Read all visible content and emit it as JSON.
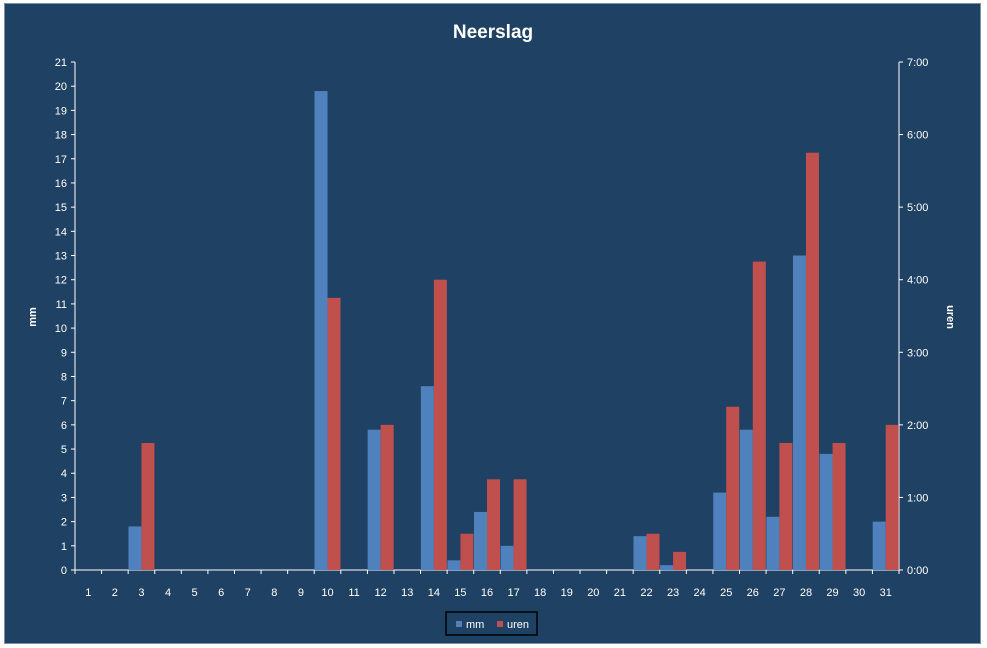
{
  "chart_data": {
    "type": "bar",
    "title": "Neerslag",
    "ylabel": "mm",
    "y2label": "uren",
    "categories": [
      "1",
      "2",
      "3",
      "4",
      "5",
      "6",
      "7",
      "8",
      "9",
      "10",
      "11",
      "12",
      "13",
      "14",
      "15",
      "16",
      "17",
      "18",
      "19",
      "20",
      "21",
      "22",
      "23",
      "24",
      "25",
      "26",
      "27",
      "28",
      "29",
      "30",
      "31"
    ],
    "ylim": [
      0,
      21
    ],
    "y_ticks": [
      "0",
      "1",
      "2",
      "3",
      "4",
      "5",
      "6",
      "7",
      "8",
      "9",
      "10",
      "11",
      "12",
      "13",
      "14",
      "15",
      "16",
      "17",
      "18",
      "19",
      "20",
      "21"
    ],
    "y2lim_hours": [
      0,
      7
    ],
    "y2_ticks": [
      "0:00",
      "1:00",
      "2:00",
      "3:00",
      "4:00",
      "5:00",
      "6:00",
      "7:00"
    ],
    "grid": false,
    "legend_position": "bottom",
    "colors": {
      "background": "#1f4163",
      "mm": "#4f81bd",
      "uren": "#c0504d",
      "axis": "#ffffff"
    },
    "series": [
      {
        "name": "mm",
        "axis": "left",
        "values": [
          0,
          0,
          1.8,
          0,
          0,
          0,
          0,
          0,
          0,
          19.8,
          0,
          5.8,
          0,
          7.6,
          0.4,
          2.4,
          1.0,
          0,
          0,
          0,
          0,
          1.4,
          0.2,
          0,
          3.2,
          5.8,
          2.2,
          13.0,
          4.8,
          0,
          2.0
        ]
      },
      {
        "name": "uren",
        "axis": "right",
        "unit": "hours",
        "values": [
          0,
          0,
          1.75,
          0,
          0,
          0,
          0,
          0,
          0,
          3.75,
          0,
          2.0,
          0,
          4.0,
          0.5,
          1.25,
          1.25,
          0,
          0,
          0,
          0,
          0.5,
          0.25,
          0,
          2.25,
          4.25,
          1.75,
          5.75,
          1.75,
          0,
          2.0
        ]
      }
    ]
  }
}
